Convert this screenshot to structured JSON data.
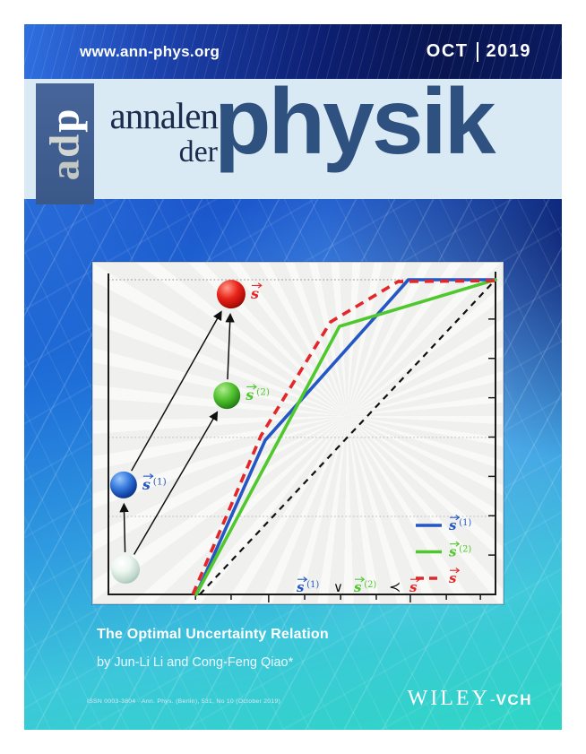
{
  "header": {
    "url": "www.ann-phys.org",
    "issue_month": "OCT",
    "issue_year": "2019"
  },
  "masthead": {
    "logo": {
      "l1": "a",
      "l2": "d",
      "l3": "p"
    },
    "title_line1": "annalen",
    "title_line2": "der",
    "title_line3": "physik"
  },
  "article": {
    "title": "The Optimal Uncertainty Relation",
    "byline": "by Jun-Li Li and Cong-Feng Qiao*"
  },
  "footer": {
    "issn_line": "ISSN 0003-3804 · Ann. Phys. (Berlin), 531, No 10 (October 2019)",
    "publisher_serif": "WILEY",
    "publisher_sep": "-",
    "publisher_sans": "VCH"
  },
  "colors": {
    "cover_blue": "#1f6fd8",
    "cover_teal": "#2fd6c4",
    "topbar_navy": "#0a1a60",
    "masthead_bg": "#d9eaf4",
    "masthead_title": "#2f5180",
    "adp_box": "#3f5e94",
    "series_blue": "#2457c5",
    "series_green": "#4fc82e",
    "series_red": "#e3262a"
  },
  "chart_data": {
    "type": "line",
    "title": "",
    "xlabel": "",
    "ylabel": "",
    "axis_tick_labels_visible": false,
    "note": "coordinates are normalized percent of plot area (x:0=left axis,100=right axis; y:0=bottom axis,100=top dotted line)",
    "gridlines_y_norm": [
      100,
      49.9,
      24.8
    ],
    "x_ticks_norm": [
      22.5,
      31.7,
      41.4,
      50.7,
      60.0,
      69.2,
      78.0,
      87.3,
      96.1
    ],
    "x_major_tick_indexes": [
      2,
      6
    ],
    "y_ticks_norm": [
      12.5,
      25,
      37.5,
      50,
      62.5,
      75,
      87.5,
      100
    ],
    "series": [
      {
        "name": "majorization diagonal",
        "color": "#111111",
        "style": "dashed",
        "dash": "7,6",
        "width": 2.2,
        "points": [
          [
            23.6,
            0
          ],
          [
            100,
            100
          ]
        ]
      },
      {
        "name": "s(1) Lorenz curve",
        "color": "#2457c5",
        "style": "solid",
        "dash": "",
        "width": 3.6,
        "points": [
          [
            22.7,
            0
          ],
          [
            40.5,
            49
          ],
          [
            77.5,
            100
          ],
          [
            100,
            100
          ]
        ]
      },
      {
        "name": "s(2) Lorenz curve",
        "color": "#4fc82e",
        "style": "solid",
        "dash": "",
        "width": 3.6,
        "points": [
          [
            22.7,
            0
          ],
          [
            59.7,
            85.2
          ],
          [
            100,
            100
          ]
        ]
      },
      {
        "name": "s Lorenz curve",
        "color": "#e3262a",
        "style": "dashed",
        "dash": "10,7",
        "width": 3.6,
        "points": [
          [
            21.8,
            0
          ],
          [
            39.4,
            50.4
          ],
          [
            57.4,
            86.6
          ],
          [
            74.8,
            99.4
          ],
          [
            100,
            99.7
          ]
        ]
      }
    ],
    "balls": [
      {
        "id": "origin",
        "x": 4.4,
        "y": 8.0,
        "r": 16,
        "label": null,
        "gradient": [
          {
            "o": 0,
            "c": "#ffffff"
          },
          {
            "o": 40,
            "c": "#eef7f1"
          },
          {
            "o": 80,
            "c": "#c2d8cc"
          },
          {
            "o": 100,
            "c": "#9fbfb2"
          }
        ]
      },
      {
        "id": "s1",
        "x": 3.9,
        "y": 34.8,
        "r": 15,
        "label": {
          "base": "s",
          "sup": "(1)",
          "color": "#2457c5"
        },
        "gradient": [
          {
            "o": 0,
            "c": "#9cc8f8"
          },
          {
            "o": 45,
            "c": "#3a7de0"
          },
          {
            "o": 80,
            "c": "#1446a8"
          },
          {
            "o": 100,
            "c": "#0c2f80"
          }
        ]
      },
      {
        "id": "s2",
        "x": 30.6,
        "y": 63.2,
        "r": 15,
        "label": {
          "base": "s",
          "sup": "(2)",
          "color": "#4fc82e"
        },
        "gradient": [
          {
            "o": 0,
            "c": "#b0eb90"
          },
          {
            "o": 50,
            "c": "#52c22e"
          },
          {
            "o": 85,
            "c": "#2d8c1a"
          },
          {
            "o": 100,
            "c": "#1f6e12"
          }
        ]
      },
      {
        "id": "s",
        "x": 31.7,
        "y": 95.4,
        "r": 16,
        "label": {
          "base": "s",
          "sup": "",
          "color": "#e3262a"
        },
        "gradient": [
          {
            "o": 0,
            "c": "#ff9a8a"
          },
          {
            "o": 50,
            "c": "#e82318"
          },
          {
            "o": 85,
            "c": "#b00d08"
          },
          {
            "o": 100,
            "c": "#7e0402"
          }
        ]
      }
    ],
    "arrows": [
      {
        "from": "origin",
        "to": "s1"
      },
      {
        "from": "origin",
        "to": "s2"
      },
      {
        "from": "s1",
        "to": "s"
      },
      {
        "from": "s2",
        "to": "s"
      }
    ],
    "legend": {
      "position": "lower right",
      "entries": [
        {
          "series": 1,
          "label": {
            "base": "s",
            "sup": "(1)",
            "color": "#2457c5"
          }
        },
        {
          "series": 2,
          "label": {
            "base": "s",
            "sup": "(2)",
            "color": "#4fc82e"
          }
        },
        {
          "series": 3,
          "label": {
            "base": "s",
            "sup": "",
            "color": "#e3262a"
          }
        }
      ]
    },
    "annotation": {
      "terms": [
        {
          "base": "s",
          "sup": "(1)",
          "color": "#2457c5"
        },
        {
          "base": "s",
          "sup": "(2)",
          "color": "#4fc82e"
        },
        {
          "base": "s",
          "sup": "",
          "color": "#e3262a"
        }
      ],
      "op_join": "∨",
      "op_rel": "≺"
    }
  }
}
